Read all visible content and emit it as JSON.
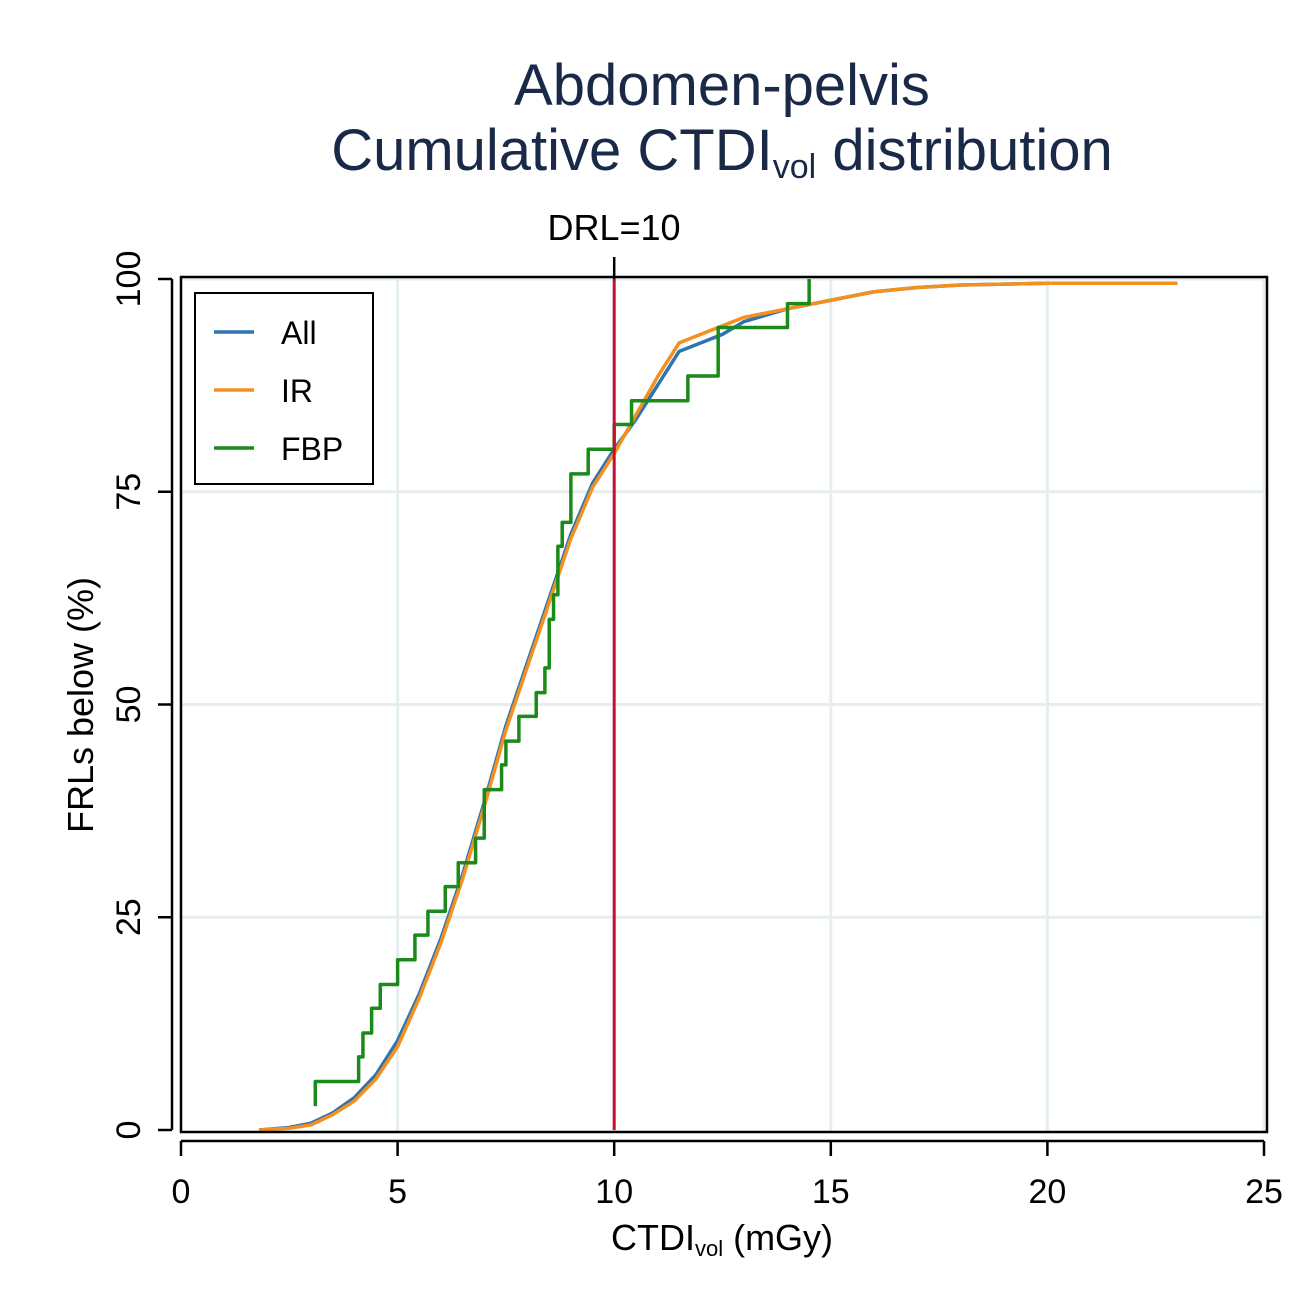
{
  "chart_data": {
    "type": "line",
    "title_line1": "Abdomen-pelvis",
    "title_line2_main": "Cumulative CTDI",
    "title_line2_sub": "vol",
    "title_line2_end": " distribution",
    "xlabel_main": "CTDI",
    "xlabel_sub": "vol",
    "xlabel_end": " (mGy)",
    "ylabel": "FRLs below (%)",
    "xlim": [
      0,
      25
    ],
    "ylim": [
      0,
      100
    ],
    "xticks": [
      0,
      5,
      10,
      15,
      20,
      25
    ],
    "yticks": [
      0,
      25,
      50,
      75,
      100
    ],
    "grid": true,
    "legend_position": "top-left",
    "reference_line": {
      "x": 10,
      "label": "DRL=10",
      "color": "#c8102e"
    },
    "series": [
      {
        "name": "All",
        "color": "#2e75b0",
        "step": false,
        "x": [
          1.8,
          2.5,
          3.0,
          3.5,
          4.0,
          4.5,
          5.0,
          5.5,
          6.0,
          6.5,
          7.0,
          7.5,
          8.0,
          8.5,
          9.0,
          9.5,
          10.0,
          10.5,
          11.0,
          11.5,
          12.0,
          12.5,
          13.0,
          14.0,
          15.0,
          16.0,
          17.0,
          18.0,
          20.0,
          23.0
        ],
        "y": [
          0,
          0.3,
          0.8,
          2.0,
          3.8,
          6.5,
          10.5,
          16.0,
          22.5,
          30.0,
          38.5,
          47.5,
          55.0,
          62.5,
          70.0,
          76.0,
          80.0,
          83.5,
          87.5,
          91.5,
          92.5,
          93.5,
          95.0,
          96.5,
          97.5,
          98.5,
          99.0,
          99.3,
          99.5,
          99.5
        ]
      },
      {
        "name": "IR",
        "color": "#f39020",
        "step": false,
        "x": [
          1.8,
          2.5,
          3.0,
          3.5,
          4.0,
          4.5,
          5.0,
          5.5,
          6.0,
          6.5,
          7.0,
          7.5,
          8.0,
          8.5,
          9.0,
          9.5,
          10.0,
          10.5,
          11.0,
          11.5,
          12.0,
          12.5,
          13.0,
          14.0,
          15.0,
          16.0,
          17.0,
          18.0,
          20.0,
          23.0
        ],
        "y": [
          0,
          0.2,
          0.6,
          1.8,
          3.4,
          6.0,
          9.8,
          15.5,
          22.0,
          29.5,
          38.0,
          47.0,
          54.5,
          62.0,
          69.5,
          75.5,
          79.5,
          84.0,
          88.5,
          92.5,
          93.5,
          94.5,
          95.5,
          96.5,
          97.5,
          98.5,
          99.0,
          99.3,
          99.5,
          99.5
        ]
      },
      {
        "name": "FBP",
        "color": "#1a8a1a",
        "step": true,
        "x": [
          3.1,
          3.1,
          4.1,
          4.2,
          4.4,
          4.6,
          5.0,
          5.4,
          5.7,
          6.1,
          6.4,
          6.8,
          7.0,
          7.4,
          7.5,
          7.8,
          8.2,
          8.4,
          8.5,
          8.6,
          8.7,
          8.8,
          9.0,
          9.4,
          10.0,
          10.4,
          11.0,
          11.7,
          12.4,
          14.0,
          14.5
        ],
        "y": [
          2.8,
          5.7,
          8.6,
          11.4,
          14.3,
          17.1,
          20.0,
          22.9,
          25.7,
          28.6,
          31.4,
          34.3,
          40.0,
          42.9,
          45.7,
          48.6,
          51.4,
          54.3,
          60.0,
          62.9,
          68.6,
          71.4,
          77.1,
          80.0,
          82.9,
          85.7,
          85.7,
          88.6,
          94.3,
          97.1,
          100.0
        ]
      }
    ]
  }
}
